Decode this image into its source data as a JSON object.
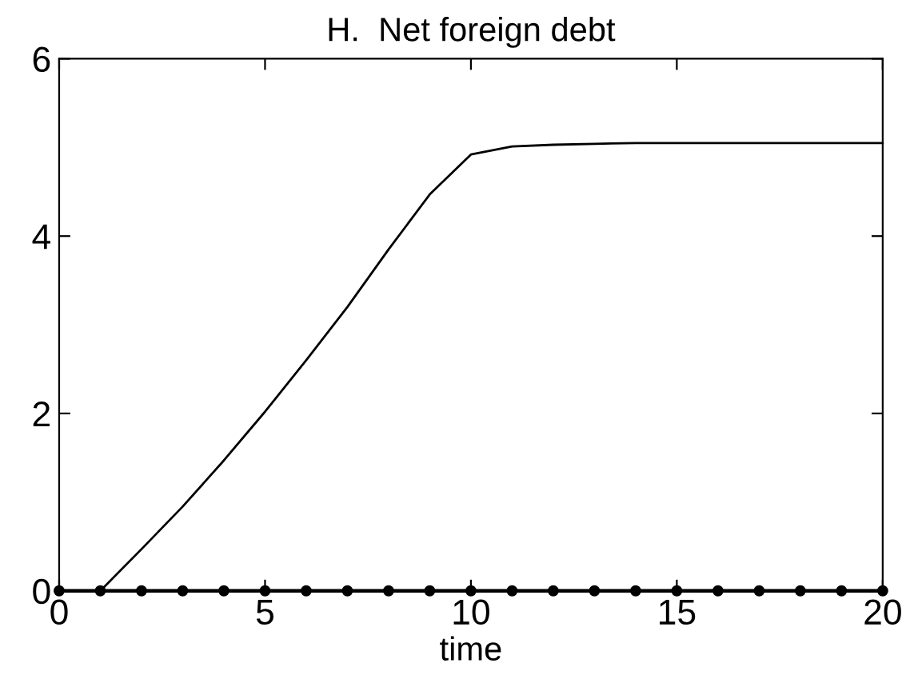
{
  "chart_data": {
    "type": "line",
    "title": "H.  Net foreign debt",
    "xlabel": "time",
    "x": [
      0,
      1,
      2,
      3,
      4,
      5,
      6,
      7,
      8,
      9,
      10,
      11,
      12,
      13,
      14,
      15,
      16,
      17,
      18,
      19,
      20
    ],
    "series": [
      {
        "color": "#000000",
        "x": [
          1,
          2,
          3,
          4,
          5,
          6,
          7,
          8,
          9,
          10,
          11,
          12,
          13,
          14,
          15,
          16,
          17,
          18,
          19,
          20
        ],
        "values": [
          0,
          0.47,
          0.95,
          1.47,
          2.02,
          2.6,
          3.2,
          3.85,
          4.47,
          4.92,
          5.01,
          5.03,
          5.04,
          5.05,
          5.05,
          5.05,
          5.05,
          5.05,
          5.05,
          5.05
        ],
        "marker": "none"
      },
      {
        "color": "#000000",
        "values": [
          0,
          0,
          0,
          0,
          0,
          0,
          0,
          0,
          0,
          0,
          0,
          0,
          0,
          0,
          0,
          0,
          0,
          0,
          0,
          0,
          0
        ],
        "marker": "circle"
      }
    ],
    "xlim": [
      0,
      20
    ],
    "xticks": [
      0,
      5,
      10,
      15,
      20
    ],
    "ylim": [
      0,
      6
    ],
    "yticks": [
      0,
      2,
      4,
      6
    ],
    "grid": false,
    "legend": false,
    "line_style": "solid"
  }
}
